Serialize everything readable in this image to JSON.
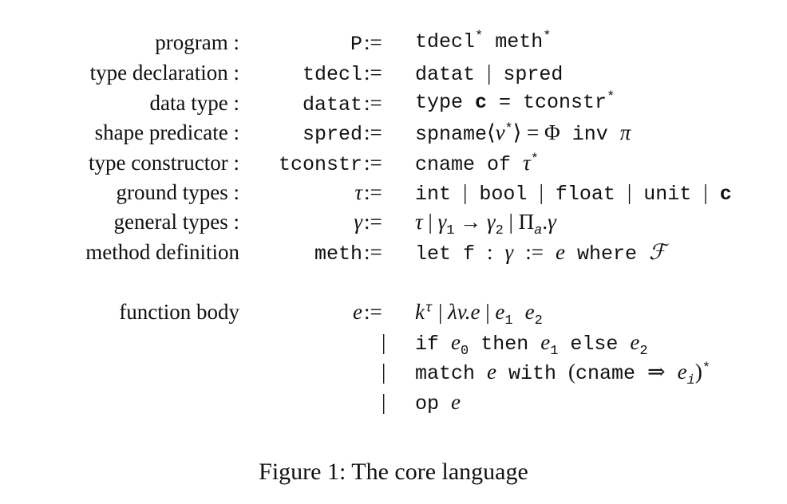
{
  "grammar": {
    "rows": [
      {
        "label": "program :",
        "lhs": "P",
        "op": ":=",
        "rhs": "tdecl* meth*"
      },
      {
        "label": "type declaration :",
        "lhs": "tdecl",
        "op": ":=",
        "rhs": "datat | spred"
      },
      {
        "label": "data type :",
        "lhs": "datat",
        "op": ":=",
        "rhs": "type c = tconstr*"
      },
      {
        "label": "shape predicate :",
        "lhs": "spred",
        "op": ":=",
        "rhs": "spname⟨v*⟩ = Φ inv π"
      },
      {
        "label": "type constructor :",
        "lhs": "tconstr",
        "op": ":=",
        "rhs": "cname of τ*"
      },
      {
        "label": "ground types :",
        "lhs": "τ",
        "op": ":=",
        "rhs": "int | bool | float | unit | c"
      },
      {
        "label": "general types :",
        "lhs": "γ",
        "op": ":=",
        "rhs": "τ | γ1 → γ2 | Πa.γ"
      },
      {
        "label": "method definition",
        "lhs": "meth",
        "op": ":=",
        "rhs": "let f : γ := e where ℱ"
      },
      {
        "label": "function body",
        "lhs": "e",
        "op": ":=",
        "rhs": "kτ | λv.e | e1 e2"
      },
      {
        "label": "",
        "lhs": "",
        "op": "|",
        "rhs": "if e0 then e1 else e2"
      },
      {
        "label": "",
        "lhs": "",
        "op": "|",
        "rhs": "match e with (cname ⇒ ei)*"
      },
      {
        "label": "",
        "lhs": "",
        "op": "|",
        "rhs": "op e⃗"
      }
    ]
  },
  "caption": "Figure 1: The core language"
}
